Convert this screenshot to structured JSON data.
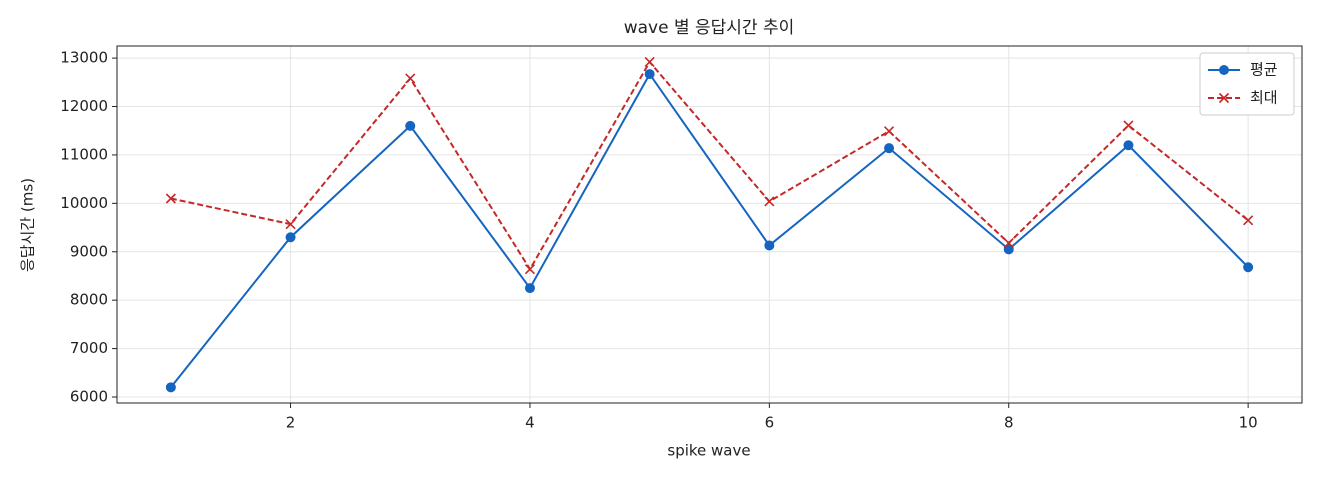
{
  "chart_data": {
    "type": "line",
    "title": "wave 별 응답시간 추이",
    "x_label": "spike wave",
    "y_label": "응답시간 (ms)",
    "x": [
      1,
      2,
      3,
      4,
      5,
      6,
      7,
      8,
      9,
      10
    ],
    "series": [
      {
        "name": "평균",
        "color": "#1565c0",
        "marker": "o",
        "linestyle": "solid",
        "values": [
          6200,
          9300,
          11600,
          8250,
          12670,
          9130,
          11140,
          9050,
          11200,
          8680
        ]
      },
      {
        "name": "최대",
        "color": "#c62828",
        "marker": "x",
        "linestyle": "dashed",
        "values": [
          10100,
          9570,
          12580,
          8640,
          12920,
          10040,
          11490,
          9180,
          11610,
          9650
        ]
      }
    ],
    "xlim": [
      0.55,
      10.45
    ],
    "xticks": [
      2,
      4,
      6,
      8,
      10
    ],
    "ylim": [
      5876,
      13250
    ],
    "yticks": [
      6000,
      7000,
      8000,
      9000,
      10000,
      11000,
      12000,
      13000
    ],
    "grid": true,
    "legend": "upper right"
  }
}
